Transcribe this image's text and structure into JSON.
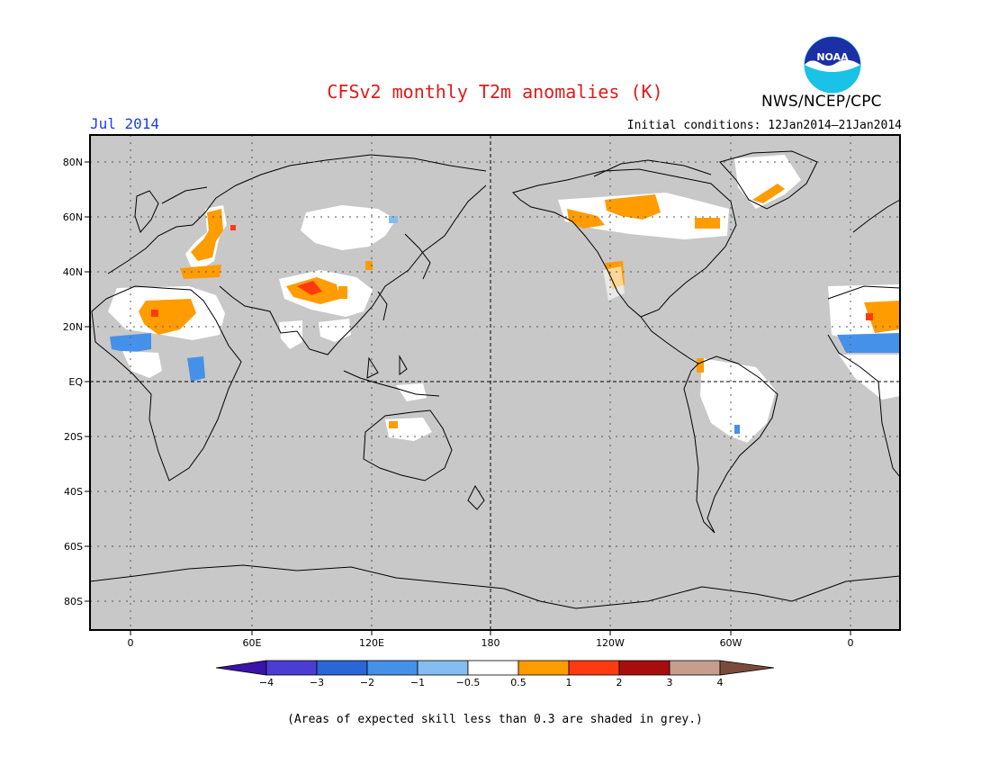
{
  "title": "CFSv2 monthly T2m anomalies (K)",
  "valid_month": "Jul 2014",
  "initial_conditions": "Initial conditions: 12Jan2014–21Jan2014",
  "agency": "NWS/NCEP/CPC",
  "logo_text": "NOAA",
  "footnote": "(Areas of expected skill less than 0.3 are shaded in grey.)",
  "map": {
    "projection": "cylindrical equidistant",
    "lon_range": [
      -20,
      380
    ],
    "lat_range": [
      -90,
      90
    ],
    "grid": true,
    "background_color": "#c8c8c8",
    "lat_labels": [
      "80N",
      "60N",
      "40N",
      "20N",
      "EQ",
      "20S",
      "40S",
      "60S",
      "80S"
    ],
    "lon_labels": [
      "0",
      "60E",
      "120E",
      "180",
      "120W",
      "60W",
      "0"
    ]
  },
  "colorbar": {
    "ticks": [
      "−4",
      "−3",
      "−2",
      "−1",
      "−0.5",
      "0.5",
      "1",
      "2",
      "3",
      "4"
    ],
    "colors": [
      "#3a13a8",
      "#4b3dd3",
      "#2a66d6",
      "#4591ea",
      "#84bdf0",
      "#ffffff",
      "#ff9c00",
      "#ff3a10",
      "#a80d0d",
      "#c59e8e",
      "#7a4b3a"
    ]
  }
}
